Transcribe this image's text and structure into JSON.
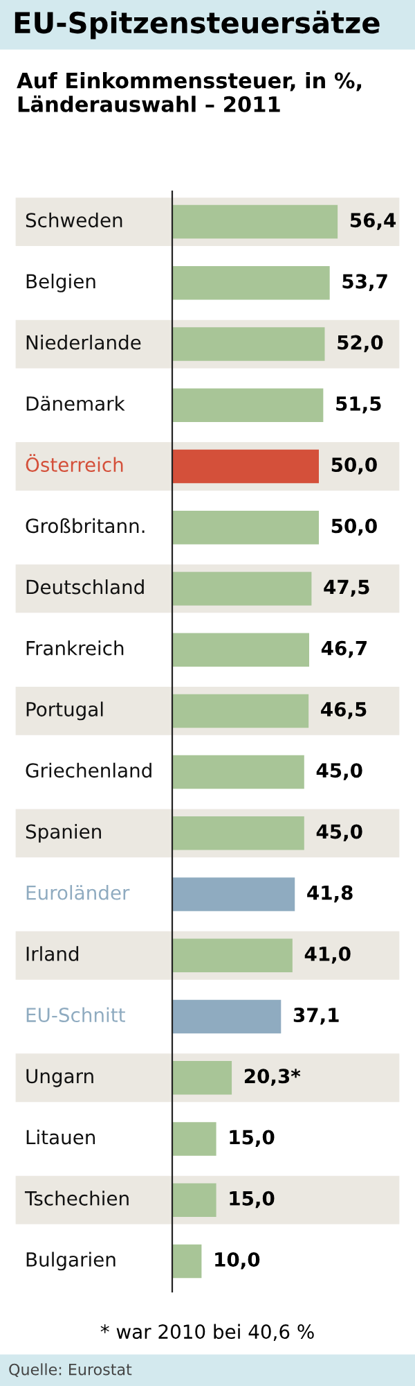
{
  "chart_data": {
    "type": "bar",
    "orientation": "horizontal",
    "title": "EU-Spitzensteuersätze",
    "subtitle": "Auf Einkommenssteuer, in %,\nLänderauswahl – 2011",
    "categories": [
      "Schweden",
      "Belgien",
      "Niederlande",
      "Dänemark",
      "Österreich",
      "Großbritann.",
      "Deutschland",
      "Frankreich",
      "Portugal",
      "Griechenland",
      "Spanien",
      "Euroländer",
      "Irland",
      "EU-Schnitt",
      "Ungarn",
      "Litauen",
      "Tschechien",
      "Bulgarien"
    ],
    "values": [
      56.4,
      53.7,
      52.0,
      51.5,
      50.0,
      50.0,
      47.5,
      46.7,
      46.5,
      45.0,
      45.0,
      41.8,
      41.0,
      37.1,
      20.3,
      15.0,
      15.0,
      10.0
    ],
    "colors": [
      "#a8c597",
      "#a8c597",
      "#a8c597",
      "#a8c597",
      "#d4503a",
      "#a8c597",
      "#a8c597",
      "#a8c597",
      "#a8c597",
      "#a8c597",
      "#a8c597",
      "#8fabc0",
      "#a8c597",
      "#8fabc0",
      "#a8c597",
      "#a8c597",
      "#a8c597",
      "#a8c597"
    ],
    "value_labels": [
      "56,4",
      "53,7",
      "52,0",
      "51,5",
      "50,0",
      "50,0",
      "47,5",
      "46,7",
      "46,5",
      "45,0",
      "45,0",
      "41,8",
      "41,0",
      "37,1",
      "20,3*",
      "15,0",
      "15,0",
      "10,0"
    ],
    "annotations": [
      "* war 2010 bei 40,6 %",
      "Quelle: Eurostat"
    ]
  }
}
